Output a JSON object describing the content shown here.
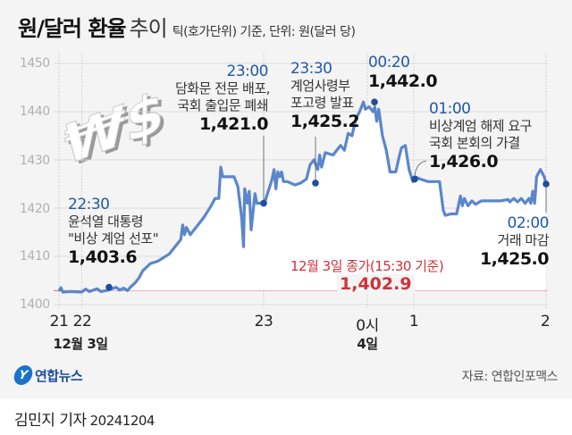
{
  "header": {
    "title_main": "원/달러 환율",
    "title_sub": "추이",
    "note": "틱(호가단위) 기준, 단위: 원(달러 당)"
  },
  "chart_data": {
    "type": "line",
    "title": "원/달러 환율 추이",
    "subtitle": "틱(호가단위) 기준, 단위: 원(달러 당)",
    "xlabel": "",
    "ylabel": "원(달러 당)",
    "ylim": [
      1400,
      1450
    ],
    "yticks": [
      1400,
      1410,
      1420,
      1430,
      1440,
      1450
    ],
    "xticks": [
      {
        "label": "21",
        "hour": 21
      },
      {
        "label": "22",
        "hour": 22
      },
      {
        "label": "23",
        "hour": 23
      },
      {
        "label": "0시",
        "hour": 24
      },
      {
        "label": "1",
        "hour": 25
      },
      {
        "label": "2",
        "hour": 26
      }
    ],
    "date_labels": [
      {
        "label": "12월 3일",
        "hour": 21.5
      },
      {
        "label": "4일",
        "hour": 24
      }
    ],
    "grid": true,
    "series": [
      {
        "name": "원/달러 환율",
        "color": "#5b86c9",
        "points": [
          [
            21.0,
            1402.8
          ],
          [
            21.05,
            1403.5
          ],
          [
            21.1,
            1402.6
          ],
          [
            21.3,
            1402.7
          ],
          [
            21.6,
            1402.6
          ],
          [
            21.7,
            1403.2
          ],
          [
            21.8,
            1402.7
          ],
          [
            22.0,
            1403.3
          ],
          [
            22.1,
            1402.7
          ],
          [
            22.3,
            1403.0
          ],
          [
            22.5,
            1403.6
          ],
          [
            22.6,
            1403.0
          ],
          [
            22.7,
            1403.4
          ],
          [
            22.8,
            1402.9
          ],
          [
            22.9,
            1403.8
          ],
          [
            23.0,
            1404.5
          ],
          [
            23.1,
            1405.5
          ],
          [
            23.2,
            1407.0
          ],
          [
            23.4,
            1408.5
          ],
          [
            23.6,
            1409.0
          ],
          [
            23.9,
            1410.5
          ],
          [
            24.2,
            1413.5
          ],
          [
            24.25,
            1416.5
          ],
          [
            24.3,
            1414.5
          ],
          [
            24.35,
            1416.0
          ],
          [
            24.45,
            1414.5
          ],
          [
            24.6,
            1416.0
          ],
          [
            24.8,
            1418.0
          ],
          [
            25.0,
            1420.5
          ],
          [
            25.1,
            1422.0
          ],
          [
            25.2,
            1422.0
          ],
          [
            25.25,
            1428.5
          ],
          [
            25.3,
            1426.5
          ],
          [
            25.6,
            1426.5
          ],
          [
            25.7,
            1424.5
          ],
          [
            25.8,
            1418.0
          ],
          [
            25.85,
            1412.0
          ],
          [
            25.88,
            1424.0
          ],
          [
            25.95,
            1421.0
          ],
          [
            26.0,
            1423.5
          ],
          [
            26.05,
            1415.5
          ],
          [
            26.15,
            1423.0
          ],
          [
            26.2,
            1421.0
          ],
          [
            26.4,
            1421.0
          ],
          [
            26.6,
            1426.0
          ],
          [
            26.65,
            1428.0
          ],
          [
            26.7,
            1424.0
          ],
          [
            26.75,
            1427.5
          ],
          [
            26.8,
            1426.5
          ],
          [
            26.85,
            1427.5
          ],
          [
            26.9,
            1425.5
          ],
          [
            27.0,
            1425.5
          ],
          [
            27.2,
            1424.8
          ],
          [
            27.35,
            1425.2
          ],
          [
            27.5,
            1426.0
          ],
          [
            27.6,
            1429.0
          ],
          [
            27.7,
            1430.0
          ],
          [
            27.8,
            1428.0
          ],
          [
            27.85,
            1431.0
          ],
          [
            27.9,
            1428.5
          ],
          [
            28.0,
            1431.5
          ],
          [
            28.2,
            1431.0
          ],
          [
            28.4,
            1433.0
          ],
          [
            28.5,
            1432.0
          ],
          [
            28.6,
            1435.5
          ],
          [
            28.7,
            1435.0
          ],
          [
            28.8,
            1438.5
          ],
          [
            28.9,
            1440.0
          ],
          [
            29.0,
            1442.0
          ],
          [
            29.05,
            1440.5
          ],
          [
            29.15,
            1441.0
          ],
          [
            29.25,
            1440.0
          ],
          [
            29.3,
            1441.0
          ],
          [
            29.35,
            1438.0
          ],
          [
            29.4,
            1440.5
          ],
          [
            29.5,
            1435.0
          ],
          [
            29.6,
            1432.0
          ],
          [
            29.7,
            1427.5
          ],
          [
            29.85,
            1427.5
          ],
          [
            29.95,
            1431.0
          ],
          [
            30.0,
            1432.5
          ],
          [
            30.1,
            1433.0
          ],
          [
            30.2,
            1428.0
          ],
          [
            30.3,
            1425.5
          ],
          [
            30.35,
            1426.5
          ],
          [
            30.5,
            1426.0
          ],
          [
            30.7,
            1425.5
          ],
          [
            31.0,
            1425.5
          ],
          [
            31.1,
            1419.5
          ],
          [
            31.15,
            1418.5
          ],
          [
            31.3,
            1418.8
          ],
          [
            31.45,
            1418.8
          ],
          [
            31.55,
            1422.5
          ],
          [
            31.6,
            1420.5
          ],
          [
            31.65,
            1422.0
          ],
          [
            31.75,
            1420.5
          ],
          [
            31.85,
            1421.5
          ],
          [
            31.95,
            1420.8
          ],
          [
            32.1,
            1421.5
          ],
          [
            32.3,
            1421.5
          ],
          [
            32.6,
            1421.5
          ],
          [
            32.8,
            1421.8
          ],
          [
            32.85,
            1421.3
          ],
          [
            32.95,
            1422.0
          ],
          [
            33.05,
            1421.3
          ],
          [
            33.15,
            1422.0
          ],
          [
            33.25,
            1421.0
          ],
          [
            33.35,
            1422.0
          ],
          [
            33.4,
            1421.0
          ],
          [
            33.45,
            1423.5
          ],
          [
            33.5,
            1421.0
          ],
          [
            33.55,
            1426.5
          ],
          [
            33.65,
            1428.0
          ],
          [
            33.75,
            1426.5
          ],
          [
            33.8,
            1425.0
          ]
        ]
      }
    ],
    "reference_line": {
      "label": "12월 3일 종가(15:30 기준)",
      "value": 1402.9,
      "value_label": "1,402.9",
      "color": "#d0323a"
    },
    "annotations": [
      {
        "time": "22:30",
        "desc": [
          "윤석열 대통령",
          "\"비상 계엄 선포\""
        ],
        "value": 1403.6,
        "value_label": "1,403.6"
      },
      {
        "time": "23:00",
        "desc": [
          "담화문 전문 배포,",
          "국회 출입문 폐쇄"
        ],
        "value": 1421.0,
        "value_label": "1,421.0"
      },
      {
        "time": "23:30",
        "desc": [
          "계엄사령부",
          "포고령 발표"
        ],
        "value": 1425.2,
        "value_label": "1,425.2"
      },
      {
        "time": "00:20",
        "desc": [],
        "value": 1442.0,
        "value_label": "1,442.0"
      },
      {
        "time": "01:00",
        "desc": [
          "비상계엄 해제 요구",
          "국회 본회의 가결"
        ],
        "value": 1426.0,
        "value_label": "1,426.0"
      },
      {
        "time": "02:00",
        "desc": [
          "거래 마감"
        ],
        "value": 1425.0,
        "value_label": "1,425.0"
      }
    ]
  },
  "axis": {
    "y_labels": [
      "1450",
      "1440",
      "1430",
      "1420",
      "1410",
      "1400"
    ],
    "x_labels": [
      "21",
      "22",
      "23",
      "0시",
      "1",
      "2"
    ],
    "date_dec3": "12월 3일",
    "date_dec4": "4일"
  },
  "annotations": {
    "a2230": {
      "time": "22:30",
      "line1": "윤석열 대통령",
      "line2": "\"비상 계엄 선포\"",
      "value": "1,403.6"
    },
    "a2300": {
      "time": "23:00",
      "line1": "담화문 전문 배포,",
      "line2": "국회 출입문 폐쇄",
      "value": "1,421.0"
    },
    "a2330": {
      "time": "23:30",
      "line1": "계엄사령부",
      "line2": "포고령 발표",
      "value": "1,425.2"
    },
    "a0020": {
      "time": "00:20",
      "value": "1,442.0"
    },
    "a0100": {
      "time": "01:00",
      "line1": "비상계엄 해제 요구",
      "line2": "국회 본회의 가결",
      "value": "1,426.0"
    },
    "a0200": {
      "time": "02:00",
      "line1": "거래 마감",
      "value": "1,425.0"
    }
  },
  "reference": {
    "label": "12월 3일 종가(15:30 기준)",
    "value": "1,402.9"
  },
  "footer": {
    "logo_text": "연합뉴스",
    "logo_mark": "Y",
    "source": "자료: 연합인포맥스",
    "byline": "김민지 기자",
    "date": "20241204"
  },
  "colors": {
    "line": "#5b86c9",
    "marker": "#1f4e9c",
    "accent_time": "#1f5aa6",
    "reference": "#d0323a",
    "grid": "#dcdcdc",
    "background": "#f4f4f4"
  }
}
